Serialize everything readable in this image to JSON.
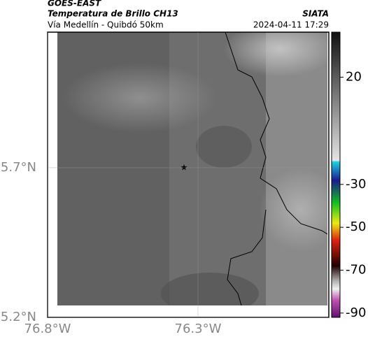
{
  "header": {
    "source": "GOES-EAST",
    "title": "Temperatura de Brillo CH13",
    "agency": "SIATA",
    "subtitle": "Vía Medellín - Quibdó 50km",
    "timestamp": "2024-04-11 17:29"
  },
  "map": {
    "xlim": [
      -76.8,
      -75.865
    ],
    "ylim": [
      5.2,
      6.153
    ],
    "xticks": [
      {
        "value": -76.8,
        "label": "76.8°W"
      },
      {
        "value": -76.3,
        "label": "76.3°W"
      }
    ],
    "yticks": [
      {
        "value": 5.2,
        "label": "5.2°N"
      },
      {
        "value": 5.7,
        "label": "5.7°N"
      }
    ]
  },
  "colorbar": {
    "lim": [
      -92,
      41
    ],
    "ticks": [
      20,
      -30,
      -50,
      -70,
      -90
    ]
  }
}
